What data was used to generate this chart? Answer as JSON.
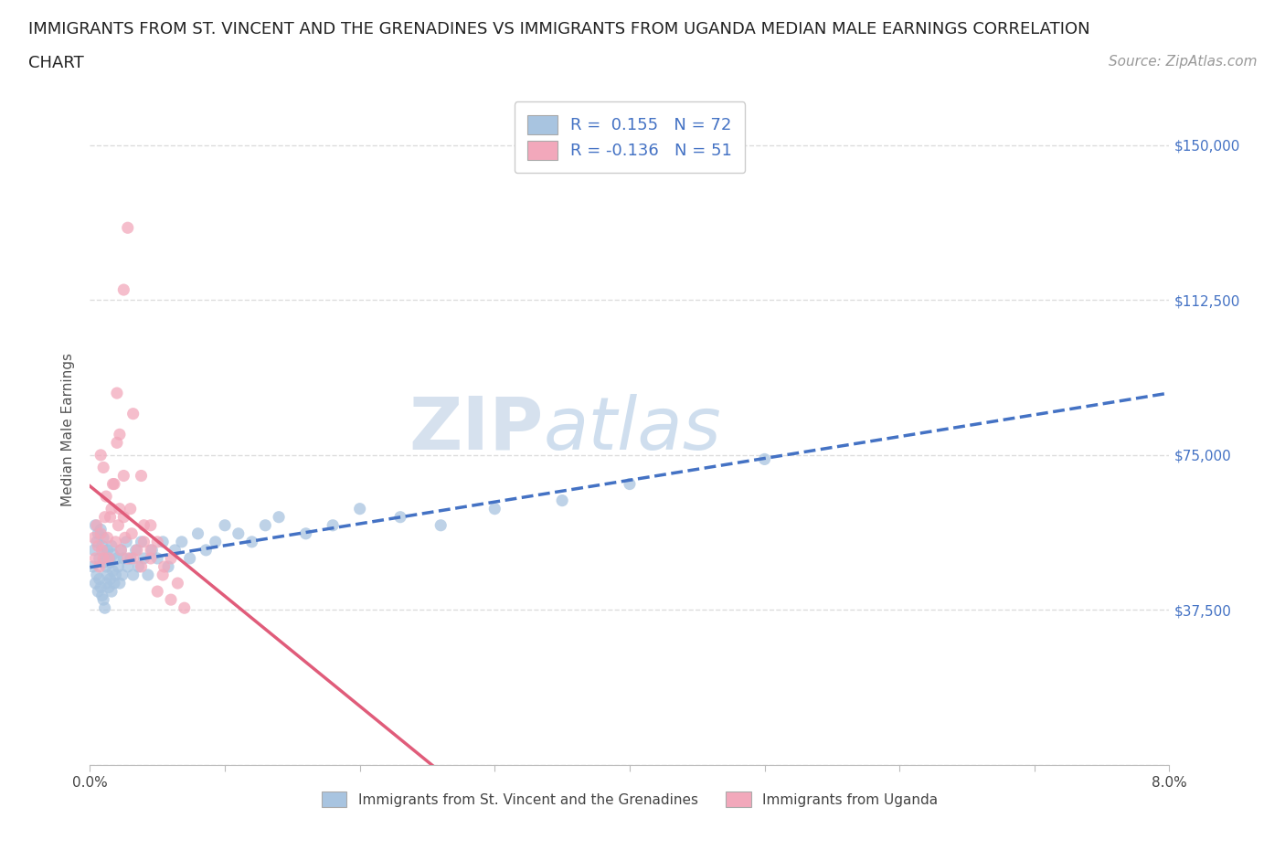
{
  "title_line1": "IMMIGRANTS FROM ST. VINCENT AND THE GRENADINES VS IMMIGRANTS FROM UGANDA MEDIAN MALE EARNINGS CORRELATION",
  "title_line2": "CHART",
  "source_text": "Source: ZipAtlas.com",
  "ylabel": "Median Male Earnings",
  "xlim": [
    0.0,
    0.08
  ],
  "ylim": [
    0,
    162500
  ],
  "ytick_vals": [
    0,
    37500,
    75000,
    112500,
    150000
  ],
  "ytick_labels": [
    "",
    "$37,500",
    "$75,000",
    "$112,500",
    "$150,000"
  ],
  "color_blue": "#a8c4e0",
  "color_pink": "#f2a8bb",
  "trendline_blue_color": "#4472c4",
  "trendline_pink_color": "#e05c7a",
  "legend_r1": "R =  0.155   N = 72",
  "legend_r2": "R = -0.136   N = 51",
  "legend_label1": "Immigrants from St. Vincent and the Grenadines",
  "legend_label2": "Immigrants from Uganda",
  "watermark_zip": "ZIP",
  "watermark_atlas": "atlas",
  "background_color": "#ffffff",
  "grid_color": "#dddddd",
  "axis_label_color": "#4472c4",
  "title_color": "#222222",
  "title_fontsize": 13,
  "source_fontsize": 11,
  "axis_fontsize": 11,
  "tick_fontsize": 11,
  "sv_x": [
    0.0002,
    0.0003,
    0.0004,
    0.0004,
    0.0005,
    0.0005,
    0.0006,
    0.0006,
    0.0007,
    0.0007,
    0.0008,
    0.0008,
    0.0009,
    0.0009,
    0.001,
    0.001,
    0.001,
    0.0011,
    0.0011,
    0.0012,
    0.0012,
    0.0013,
    0.0013,
    0.0014,
    0.0014,
    0.0015,
    0.0015,
    0.0016,
    0.0016,
    0.0017,
    0.0017,
    0.0018,
    0.0019,
    0.002,
    0.0021,
    0.0022,
    0.0023,
    0.0024,
    0.0025,
    0.0027,
    0.0028,
    0.003,
    0.0032,
    0.0034,
    0.0036,
    0.0038,
    0.004,
    0.0043,
    0.0046,
    0.005,
    0.0054,
    0.0058,
    0.0063,
    0.0068,
    0.0074,
    0.008,
    0.0086,
    0.0093,
    0.01,
    0.011,
    0.012,
    0.013,
    0.014,
    0.016,
    0.018,
    0.02,
    0.023,
    0.026,
    0.03,
    0.035,
    0.04,
    0.05
  ],
  "sv_y": [
    48000,
    52000,
    44000,
    58000,
    46000,
    54000,
    42000,
    56000,
    45000,
    50000,
    43000,
    57000,
    41000,
    53000,
    40000,
    49000,
    55000,
    38000,
    51000,
    44000,
    48000,
    46000,
    52000,
    43000,
    50000,
    45000,
    49000,
    42000,
    53000,
    47000,
    51000,
    44000,
    46000,
    50000,
    48000,
    44000,
    52000,
    46000,
    50000,
    54000,
    48000,
    50000,
    46000,
    52000,
    48000,
    54000,
    50000,
    46000,
    52000,
    50000,
    54000,
    48000,
    52000,
    54000,
    50000,
    56000,
    52000,
    54000,
    58000,
    56000,
    54000,
    58000,
    60000,
    56000,
    58000,
    62000,
    60000,
    58000,
    62000,
    64000,
    68000,
    74000
  ],
  "ug_x": [
    0.0003,
    0.0004,
    0.0005,
    0.0006,
    0.0007,
    0.0008,
    0.0009,
    0.001,
    0.0011,
    0.0013,
    0.0014,
    0.0016,
    0.0017,
    0.0019,
    0.0021,
    0.0023,
    0.0025,
    0.0028,
    0.0031,
    0.0035,
    0.004,
    0.0045,
    0.0008,
    0.001,
    0.0012,
    0.0015,
    0.0018,
    0.0022,
    0.0026,
    0.0032,
    0.0038,
    0.0045,
    0.0054,
    0.002,
    0.0025,
    0.003,
    0.004,
    0.005,
    0.006,
    0.002,
    0.0022,
    0.0025,
    0.0028,
    0.0032,
    0.0038,
    0.0045,
    0.0055,
    0.0065,
    0.005,
    0.006,
    0.007
  ],
  "ug_y": [
    55000,
    50000,
    58000,
    53000,
    48000,
    56000,
    52000,
    50000,
    60000,
    55000,
    50000,
    62000,
    68000,
    54000,
    58000,
    52000,
    60000,
    50000,
    56000,
    52000,
    54000,
    50000,
    75000,
    72000,
    65000,
    60000,
    68000,
    62000,
    55000,
    50000,
    48000,
    52000,
    46000,
    78000,
    70000,
    62000,
    58000,
    54000,
    50000,
    90000,
    80000,
    115000,
    130000,
    85000,
    70000,
    58000,
    48000,
    44000,
    42000,
    40000,
    38000
  ]
}
